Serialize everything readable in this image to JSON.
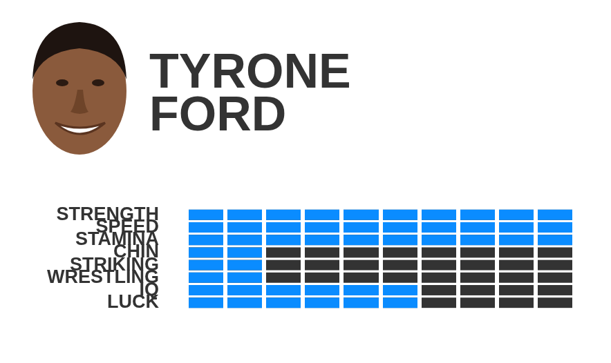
{
  "chart_data": {
    "type": "bar",
    "title": [
      "TYRONE",
      "FORD"
    ],
    "orientation": "horizontal",
    "categories": [
      "STRENGTH",
      "SPEED",
      "STAMINA",
      "CHIN",
      "STRIKING",
      "WRESTLING",
      "IQ",
      "LUCK"
    ],
    "values": [
      10,
      10,
      10,
      2,
      2,
      2,
      6,
      6
    ],
    "color": "#0a8cff",
    "xlim": [
      0,
      10
    ],
    "xticks": [
      0,
      1,
      2,
      3,
      4,
      5,
      6,
      7,
      8,
      9,
      10
    ],
    "grid": true,
    "tick_labels": "y"
  }
}
